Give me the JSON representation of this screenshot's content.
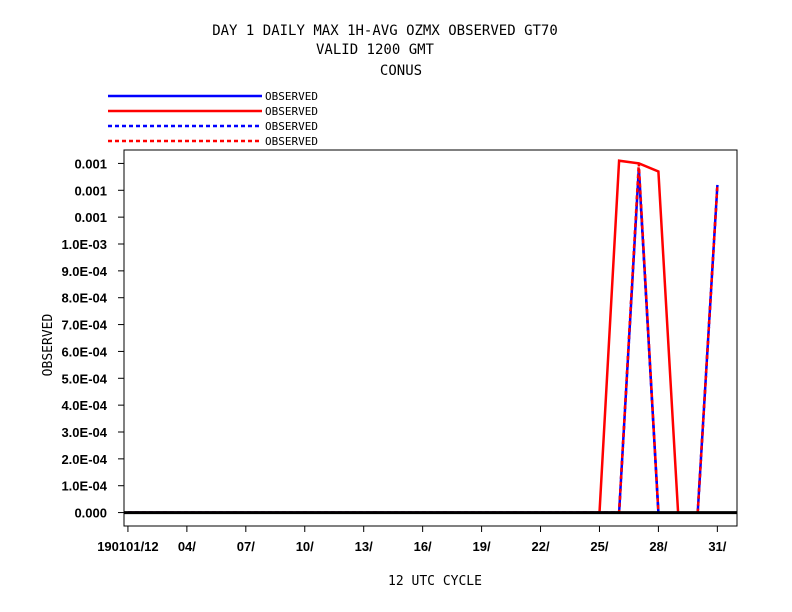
{
  "chart_data": {
    "type": "line",
    "title_lines": [
      "DAY 1 DAILY MAX   1H-AVG OZMX OBSERVED GT70",
      "VALID 1200 GMT",
      "CONUS"
    ],
    "xlabel": "12 UTC CYCLE",
    "ylabel": "OBSERVED",
    "x_ticks": [
      {
        "day": 1,
        "label": "190101/12"
      },
      {
        "day": 4,
        "label": "04/"
      },
      {
        "day": 7,
        "label": "07/"
      },
      {
        "day": 10,
        "label": "10/"
      },
      {
        "day": 13,
        "label": "13/"
      },
      {
        "day": 16,
        "label": "16/"
      },
      {
        "day": 19,
        "label": "19/"
      },
      {
        "day": 22,
        "label": "22/"
      },
      {
        "day": 25,
        "label": "25/"
      },
      {
        "day": 28,
        "label": "28/"
      },
      {
        "day": 31,
        "label": "31/"
      }
    ],
    "y_ticks": [
      {
        "value": 0.0,
        "label": "0.000"
      },
      {
        "value": 0.0001,
        "label": "1.0E-04"
      },
      {
        "value": 0.0002,
        "label": "2.0E-04"
      },
      {
        "value": 0.0003,
        "label": "3.0E-04"
      },
      {
        "value": 0.0004,
        "label": "4.0E-04"
      },
      {
        "value": 0.0005,
        "label": "5.0E-04"
      },
      {
        "value": 0.0006,
        "label": "6.0E-04"
      },
      {
        "value": 0.0007,
        "label": "7.0E-04"
      },
      {
        "value": 0.0008,
        "label": "8.0E-04"
      },
      {
        "value": 0.0009,
        "label": "9.0E-04"
      },
      {
        "value": 0.001,
        "label": "1.0E-03"
      },
      {
        "value": 0.0011,
        "label": "0.001"
      },
      {
        "value": 0.0012,
        "label": "0.001"
      },
      {
        "value": 0.0013,
        "label": "0.001"
      }
    ],
    "xlim": [
      0.8,
      32.0
    ],
    "ylim": [
      -5e-05,
      0.00135
    ],
    "grid": false,
    "legend_position": "top-left above plot",
    "series": [
      {
        "name": "OBSERVED",
        "color": "#0000ff",
        "dash": "solid",
        "x": [
          1,
          2,
          3,
          4,
          5,
          6,
          7,
          8,
          9,
          10,
          11,
          12,
          13,
          14,
          15,
          16,
          17,
          18,
          19,
          20,
          21,
          22,
          23,
          24,
          25,
          26,
          27,
          28,
          29,
          30,
          31
        ],
        "y": [
          0,
          0,
          0,
          0,
          0,
          0,
          0,
          0,
          0,
          0,
          0,
          0,
          0,
          0,
          0,
          0,
          0,
          0,
          0,
          0,
          0,
          0,
          0,
          0,
          0,
          0,
          0.00128,
          0,
          null,
          0,
          0.00122
        ]
      },
      {
        "name": "OBSERVED",
        "color": "#ff0000",
        "dash": "solid",
        "x": [
          1,
          2,
          3,
          4,
          5,
          6,
          7,
          8,
          9,
          10,
          11,
          12,
          13,
          14,
          15,
          16,
          17,
          18,
          19,
          20,
          21,
          22,
          23,
          24,
          25,
          26,
          27,
          28,
          29,
          30,
          31
        ],
        "y": [
          0,
          0,
          0,
          0,
          0,
          0,
          0,
          0,
          0,
          0,
          0,
          0,
          0,
          0,
          0,
          0,
          0,
          0,
          0,
          0,
          0,
          0,
          0,
          0,
          0,
          0.00131,
          0.0013,
          0.00127,
          0,
          null,
          null
        ]
      },
      {
        "name": "OBSERVED",
        "color": "#0000ff",
        "dash": "dashed",
        "x": [
          1,
          2,
          3,
          4,
          5,
          6,
          7,
          8,
          9,
          10,
          11,
          12,
          13,
          14,
          15,
          16,
          17,
          18,
          19,
          20,
          21,
          22,
          23,
          24,
          25,
          26,
          27,
          28,
          29,
          30,
          31
        ],
        "y": [
          0,
          0,
          0,
          0,
          0,
          0,
          0,
          0,
          0,
          0,
          0,
          0,
          0,
          0,
          0,
          0,
          0,
          0,
          0,
          0,
          0,
          0,
          0,
          0,
          0,
          0,
          0.00128,
          0,
          null,
          0,
          0.00122
        ]
      },
      {
        "name": "OBSERVED",
        "color": "#ff0000",
        "dash": "dashed",
        "x": [
          1,
          2,
          3,
          4,
          5,
          6,
          7,
          8,
          9,
          10,
          11,
          12,
          13,
          14,
          15,
          16,
          17,
          18,
          19,
          20,
          21,
          22,
          23,
          24,
          25,
          26,
          27,
          28,
          29,
          30,
          31
        ],
        "y": [
          0,
          0,
          0,
          0,
          0,
          0,
          0,
          0,
          0,
          0,
          0,
          0,
          0,
          0,
          0,
          0,
          0,
          0,
          0,
          0,
          0,
          0,
          0,
          0,
          0,
          0,
          0.0013,
          0,
          null,
          0,
          0.00122
        ]
      }
    ]
  }
}
